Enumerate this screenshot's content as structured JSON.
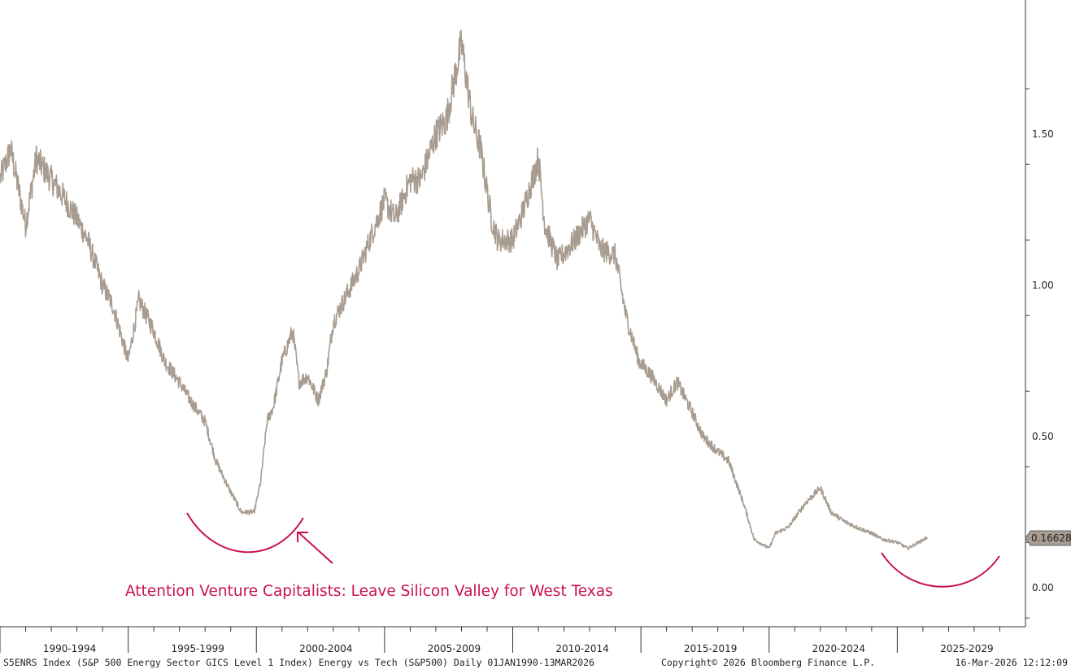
{
  "chart_data": {
    "type": "line",
    "title": "",
    "series": [
      {
        "x": [
          "1990-01",
          "1990-06",
          "1991-01",
          "1991-06",
          "1992-01",
          "1992-06",
          "1993-01",
          "1993-06",
          "1994-01",
          "1994-06",
          "1995-01",
          "1995-06",
          "1996-01",
          "1996-06",
          "1997-01",
          "1997-06",
          "1998-01",
          "1998-06",
          "1998-12",
          "1999-06",
          "1999-12",
          "2000-03",
          "2000-06",
          "2000-09",
          "2001-01",
          "2001-06",
          "2001-09",
          "2002-01",
          "2002-06",
          "2002-10",
          "2003-01",
          "2003-06",
          "2004-01",
          "2004-06",
          "2005-01",
          "2005-06",
          "2006-01",
          "2006-06",
          "2007-01",
          "2007-06",
          "2008-01",
          "2008-06",
          "2008-10",
          "2009-03",
          "2009-06",
          "2010-01",
          "2010-06",
          "2011-01",
          "2011-04",
          "2011-10",
          "2012-06",
          "2013-01",
          "2013-06",
          "2014-01",
          "2014-06",
          "2014-12",
          "2015-06",
          "2016-01",
          "2016-06",
          "2017-01",
          "2017-06",
          "2018-01",
          "2018-06",
          "2019-01",
          "2019-06",
          "2020-01",
          "2020-04",
          "2020-10",
          "2021-06",
          "2022-01",
          "2022-06",
          "2022-12",
          "2023-06",
          "2024-01",
          "2024-06",
          "2025-01",
          "2025-06",
          "2026-03"
        ],
        "values": [
          1.35,
          1.45,
          1.2,
          1.42,
          1.35,
          1.3,
          1.22,
          1.15,
          1.0,
          0.93,
          0.75,
          0.95,
          0.85,
          0.75,
          0.68,
          0.62,
          0.55,
          0.42,
          0.33,
          0.25,
          0.25,
          0.35,
          0.55,
          0.6,
          0.75,
          0.85,
          0.68,
          0.7,
          0.62,
          0.72,
          0.88,
          0.95,
          1.05,
          1.15,
          1.28,
          1.22,
          1.35,
          1.35,
          1.5,
          1.55,
          1.8,
          1.55,
          1.45,
          1.22,
          1.15,
          1.15,
          1.25,
          1.42,
          1.2,
          1.08,
          1.15,
          1.22,
          1.12,
          1.1,
          0.9,
          0.75,
          0.7,
          0.62,
          0.68,
          0.58,
          0.5,
          0.45,
          0.42,
          0.28,
          0.16,
          0.13,
          0.18,
          0.2,
          0.28,
          0.33,
          0.25,
          0.22,
          0.2,
          0.18,
          0.16,
          0.15,
          0.13,
          0.16628
        ]
      }
    ],
    "xlabel": "",
    "ylabel": "",
    "x_tick_labels": [
      "1990-1994",
      "1995-1999",
      "2000-2004",
      "2005-2009",
      "2010-2014",
      "2015-2019",
      "2020-2024",
      "2025-2029"
    ],
    "y_ticks": [
      0.0,
      0.5,
      1.0,
      1.5
    ],
    "y_tick_labels": [
      "0.00",
      "0.50",
      "1.00",
      "1.50"
    ],
    "xlim": [
      "1990-01",
      "2030-01"
    ],
    "ylim": [
      -0.13,
      1.95
    ],
    "last_value_label": "0.16628",
    "grid": false,
    "annotation": "Attention Venture Capitalists: Leave Silicon Valley for West Texas",
    "footer_left": "S5ENRS Index (S&P 500 Energy Sector GICS Level 1 Index) Energy vs Tech (S&P500) Daily 01JAN1990-13MAR2026",
    "footer_center": "Copyright© 2026 Bloomberg Finance L.P.",
    "footer_right": "16-Mar-2026 12:12:09",
    "colors": {
      "line": "#a89c90",
      "annotation": "#c8124a",
      "axis": "#333333",
      "badge_fill": "#a89c90"
    }
  }
}
